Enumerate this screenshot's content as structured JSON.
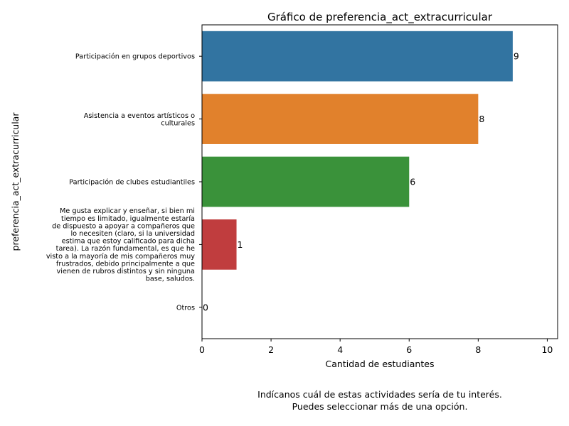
{
  "chart_data": {
    "type": "bar",
    "orientation": "horizontal",
    "title": "Gráfico de preferencia_act_extracurricular",
    "xlabel": "Cantidad de estudiantes",
    "ylabel": "preferencia_act_extracurricular",
    "xlim": [
      0,
      10.3
    ],
    "xticks": [
      "0",
      "2",
      "4",
      "6",
      "8",
      "10"
    ],
    "grid": false,
    "categories": [
      {
        "lines": [
          "Participación en grupos deportivos"
        ]
      },
      {
        "lines": [
          "Asistencia a eventos artísticos o",
          "culturales"
        ]
      },
      {
        "lines": [
          "Participación de clubes estudiantiles"
        ]
      },
      {
        "lines": [
          "Me gusta explicar y enseñar, si bien mi",
          "tiempo es limitado, igualmente estaría",
          "de dispuesto a apoyar a compañeros que",
          "lo necesiten  (claro, si la universidad",
          "estima que estoy calificado para dicha",
          "tarea). La razón fundamental, es que he",
          "visto a la mayoría de mis compañeros muy",
          "frustrados, debido principalmente a que",
          "vienen de rubros distintos y sin ninguna",
          "base, saludos."
        ]
      },
      {
        "lines": [
          "Otros"
        ]
      }
    ],
    "values": [
      9,
      8,
      6,
      1,
      0
    ],
    "data_labels": [
      "9",
      "8",
      "6",
      "1",
      "0"
    ],
    "colors": [
      "#3274a1",
      "#e1812c",
      "#3a923a",
      "#c03d3e",
      "#9372b2"
    ]
  },
  "caption": {
    "line1": "Indícanos cuál de estas actividades sería de tu interés.",
    "line2": "Puedes seleccionar más de una opción."
  }
}
